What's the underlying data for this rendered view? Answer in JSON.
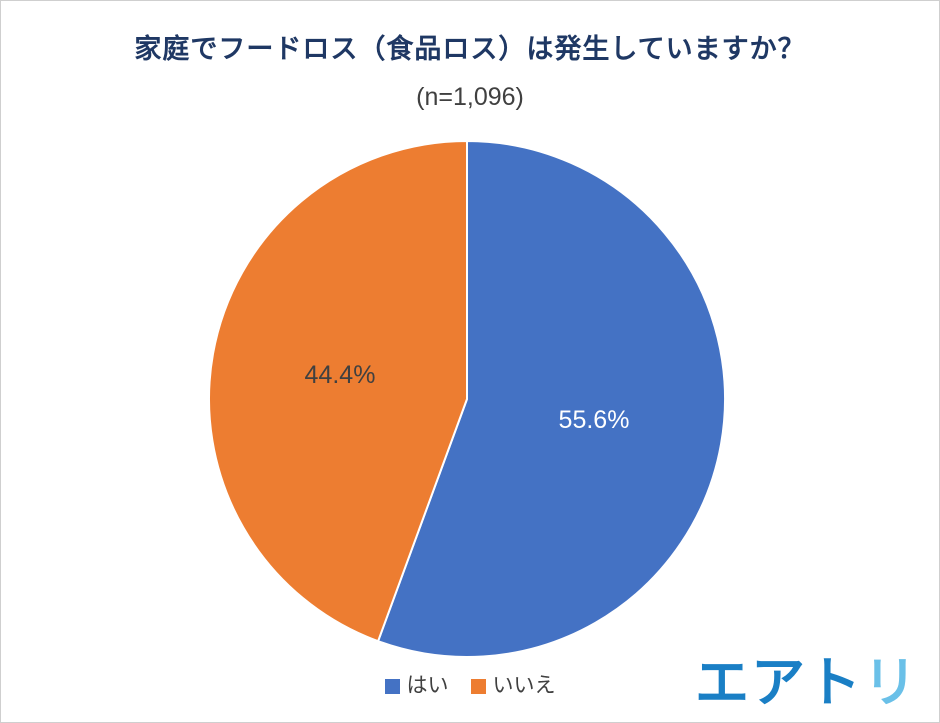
{
  "chart_data": {
    "type": "pie",
    "title": "家庭でフードロス（食品ロス）は発生していますか？",
    "subtitle": "(n=1,096)",
    "labels": [
      "はい",
      "いいえ"
    ],
    "values": [
      55.6,
      44.4
    ],
    "value_labels": [
      "55.6%",
      "44.4%"
    ],
    "colors": [
      "#4472c4",
      "#ed7d31"
    ],
    "label_text_colors": [
      "#ffffff",
      "#404040"
    ],
    "start_angle_deg": 0,
    "slice_border_color": "#ffffff",
    "legend_position": "bottom"
  },
  "logo": {
    "text_main": "エアト",
    "text_accent": "リ",
    "color_main": "#1a7fc5",
    "color_accent": "#6ac0e8"
  }
}
